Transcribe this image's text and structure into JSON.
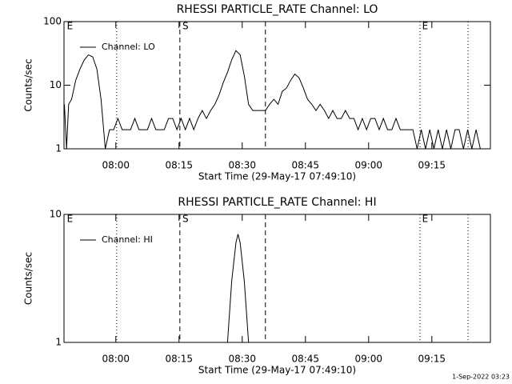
{
  "chart_data": [
    {
      "type": "line",
      "title": "RHESSI PARTICLE_RATE Channel: LO",
      "x_label": "Start Time (29-May-17 07:49:10)",
      "y_label": "Counts/sec",
      "ylog": true,
      "grid": false,
      "legend": "top-left",
      "xlim": [
        467.7,
        568.9
      ],
      "xticks": [
        {
          "value": 480,
          "label": "08:00"
        },
        {
          "value": 495,
          "label": "08:15"
        },
        {
          "value": 510,
          "label": "08:30"
        },
        {
          "value": 525,
          "label": "08:45"
        },
        {
          "value": 540,
          "label": "09:00"
        },
        {
          "value": 555,
          "label": "09:15"
        }
      ],
      "ylim": [
        1,
        100
      ],
      "yticks": [
        1,
        10,
        100
      ],
      "markers": [
        {
          "x": 480.2,
          "style": "dotted"
        },
        {
          "x": 495.2,
          "style": "dashed"
        },
        {
          "x": 515.5,
          "style": "dashed"
        },
        {
          "x": 552.2,
          "style": "dotted"
        },
        {
          "x": 563.6,
          "style": "dotted"
        }
      ],
      "marker_labels": [
        {
          "x": 468.4,
          "text": "E"
        },
        {
          "x": 495.8,
          "text": "S"
        },
        {
          "x": 552.7,
          "text": "E"
        }
      ],
      "x": [
        467.8,
        468.3,
        468.8,
        469.5,
        470.5,
        471.5,
        472.5,
        473.5,
        474.5,
        475.5,
        476.5,
        477.5,
        478.5,
        479.5,
        480.5,
        481.5,
        482.5,
        483.5,
        484.5,
        485.5,
        486.5,
        487.5,
        488.5,
        489.5,
        490.5,
        491.5,
        492.5,
        493.5,
        494.5,
        495.5,
        496.5,
        497.5,
        498.5,
        499.5,
        500.5,
        501.5,
        502.5,
        503.5,
        504.5,
        505.5,
        506.5,
        507.5,
        508.5,
        509.5,
        510.5,
        511.5,
        512.5,
        513.5,
        514.5,
        515.5,
        516.5,
        517.5,
        518.5,
        519.5,
        520.5,
        521.5,
        522.5,
        523.5,
        524.5,
        525.5,
        526.5,
        527.5,
        528.5,
        529.5,
        530.5,
        531.5,
        532.5,
        533.5,
        534.5,
        535.5,
        536.5,
        537.5,
        538.5,
        539.5,
        540.5,
        541.5,
        542.5,
        543.5,
        544.5,
        545.5,
        546.5,
        547.5,
        548.5,
        549.5,
        550.5,
        551.5,
        552.5,
        553.5,
        554.5,
        555.5,
        556.5,
        557.5,
        558.5,
        559.5,
        560.5,
        561.5,
        562.5,
        563.5,
        564.5,
        565.5,
        566.5
      ],
      "series": [
        {
          "name": "Channel: LO",
          "color": "#000000",
          "values": [
            5,
            1,
            5,
            6,
            12,
            18,
            25,
            30,
            28,
            18,
            6,
            1,
            2,
            2,
            3,
            2,
            2,
            2,
            3,
            2,
            2,
            2,
            3,
            2,
            2,
            2,
            3,
            3,
            2,
            3,
            2,
            3,
            2,
            3,
            4,
            3,
            4,
            5,
            7,
            11,
            16,
            25,
            35,
            30,
            14,
            5,
            4,
            4,
            4,
            4,
            5,
            6,
            5,
            8,
            9,
            12,
            15,
            13,
            9,
            6,
            5,
            4,
            5,
            4,
            3,
            4,
            3,
            3,
            4,
            3,
            3,
            2,
            3,
            2,
            3,
            3,
            2,
            3,
            2,
            2,
            3,
            2,
            2,
            2,
            2,
            1,
            2,
            1,
            2,
            1,
            2,
            1,
            2,
            1,
            2,
            2,
            1,
            2,
            1,
            2,
            1
          ]
        }
      ]
    },
    {
      "type": "line",
      "title": "RHESSI PARTICLE_RATE Channel: HI",
      "x_label": "Start Time (29-May-17 07:49:10)",
      "y_label": "Counts/sec",
      "ylog": true,
      "grid": false,
      "legend": "top-left",
      "xlim": [
        467.7,
        568.9
      ],
      "xticks": [
        {
          "value": 480,
          "label": "08:00"
        },
        {
          "value": 495,
          "label": "08:15"
        },
        {
          "value": 510,
          "label": "08:30"
        },
        {
          "value": 525,
          "label": "08:45"
        },
        {
          "value": 540,
          "label": "09:00"
        },
        {
          "value": 555,
          "label": "09:15"
        }
      ],
      "ylim": [
        1,
        10
      ],
      "yticks": [
        1,
        10
      ],
      "markers": [
        {
          "x": 480.2,
          "style": "dotted"
        },
        {
          "x": 495.2,
          "style": "dashed"
        },
        {
          "x": 515.5,
          "style": "dashed"
        },
        {
          "x": 552.2,
          "style": "dotted"
        },
        {
          "x": 563.6,
          "style": "dotted"
        }
      ],
      "marker_labels": [
        {
          "x": 468.4,
          "text": "E"
        },
        {
          "x": 495.8,
          "text": "S"
        },
        {
          "x": 552.7,
          "text": "E"
        }
      ],
      "x": [
        506.5,
        507.5,
        508.5,
        509,
        509.5,
        510.5,
        511.5
      ],
      "series": [
        {
          "name": "Channel: HI",
          "color": "#000000",
          "values": [
            1,
            3,
            6,
            7,
            6,
            3,
            1
          ]
        }
      ]
    }
  ],
  "footer": "1-Sep-2022 03:23"
}
